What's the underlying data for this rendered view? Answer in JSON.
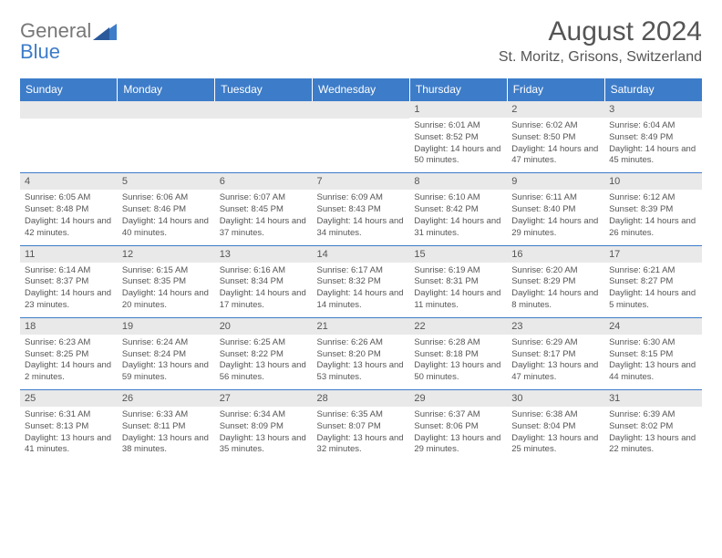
{
  "logo": {
    "word1": "General",
    "word2": "Blue"
  },
  "title": "August 2024",
  "location": "St. Moritz, Grisons, Switzerland",
  "colors": {
    "header_bg": "#3d7cc9",
    "header_text": "#ffffff",
    "daynum_bg": "#e9e9e9",
    "border": "#3d7cc9",
    "body_text": "#555555",
    "logo_gray": "#777777",
    "logo_blue": "#3d7cc9"
  },
  "weekdays": [
    "Sunday",
    "Monday",
    "Tuesday",
    "Wednesday",
    "Thursday",
    "Friday",
    "Saturday"
  ],
  "weeks": [
    [
      null,
      null,
      null,
      null,
      {
        "day": "1",
        "sunrise": "Sunrise: 6:01 AM",
        "sunset": "Sunset: 8:52 PM",
        "daylight": "Daylight: 14 hours and 50 minutes."
      },
      {
        "day": "2",
        "sunrise": "Sunrise: 6:02 AM",
        "sunset": "Sunset: 8:50 PM",
        "daylight": "Daylight: 14 hours and 47 minutes."
      },
      {
        "day": "3",
        "sunrise": "Sunrise: 6:04 AM",
        "sunset": "Sunset: 8:49 PM",
        "daylight": "Daylight: 14 hours and 45 minutes."
      }
    ],
    [
      {
        "day": "4",
        "sunrise": "Sunrise: 6:05 AM",
        "sunset": "Sunset: 8:48 PM",
        "daylight": "Daylight: 14 hours and 42 minutes."
      },
      {
        "day": "5",
        "sunrise": "Sunrise: 6:06 AM",
        "sunset": "Sunset: 8:46 PM",
        "daylight": "Daylight: 14 hours and 40 minutes."
      },
      {
        "day": "6",
        "sunrise": "Sunrise: 6:07 AM",
        "sunset": "Sunset: 8:45 PM",
        "daylight": "Daylight: 14 hours and 37 minutes."
      },
      {
        "day": "7",
        "sunrise": "Sunrise: 6:09 AM",
        "sunset": "Sunset: 8:43 PM",
        "daylight": "Daylight: 14 hours and 34 minutes."
      },
      {
        "day": "8",
        "sunrise": "Sunrise: 6:10 AM",
        "sunset": "Sunset: 8:42 PM",
        "daylight": "Daylight: 14 hours and 31 minutes."
      },
      {
        "day": "9",
        "sunrise": "Sunrise: 6:11 AM",
        "sunset": "Sunset: 8:40 PM",
        "daylight": "Daylight: 14 hours and 29 minutes."
      },
      {
        "day": "10",
        "sunrise": "Sunrise: 6:12 AM",
        "sunset": "Sunset: 8:39 PM",
        "daylight": "Daylight: 14 hours and 26 minutes."
      }
    ],
    [
      {
        "day": "11",
        "sunrise": "Sunrise: 6:14 AM",
        "sunset": "Sunset: 8:37 PM",
        "daylight": "Daylight: 14 hours and 23 minutes."
      },
      {
        "day": "12",
        "sunrise": "Sunrise: 6:15 AM",
        "sunset": "Sunset: 8:35 PM",
        "daylight": "Daylight: 14 hours and 20 minutes."
      },
      {
        "day": "13",
        "sunrise": "Sunrise: 6:16 AM",
        "sunset": "Sunset: 8:34 PM",
        "daylight": "Daylight: 14 hours and 17 minutes."
      },
      {
        "day": "14",
        "sunrise": "Sunrise: 6:17 AM",
        "sunset": "Sunset: 8:32 PM",
        "daylight": "Daylight: 14 hours and 14 minutes."
      },
      {
        "day": "15",
        "sunrise": "Sunrise: 6:19 AM",
        "sunset": "Sunset: 8:31 PM",
        "daylight": "Daylight: 14 hours and 11 minutes."
      },
      {
        "day": "16",
        "sunrise": "Sunrise: 6:20 AM",
        "sunset": "Sunset: 8:29 PM",
        "daylight": "Daylight: 14 hours and 8 minutes."
      },
      {
        "day": "17",
        "sunrise": "Sunrise: 6:21 AM",
        "sunset": "Sunset: 8:27 PM",
        "daylight": "Daylight: 14 hours and 5 minutes."
      }
    ],
    [
      {
        "day": "18",
        "sunrise": "Sunrise: 6:23 AM",
        "sunset": "Sunset: 8:25 PM",
        "daylight": "Daylight: 14 hours and 2 minutes."
      },
      {
        "day": "19",
        "sunrise": "Sunrise: 6:24 AM",
        "sunset": "Sunset: 8:24 PM",
        "daylight": "Daylight: 13 hours and 59 minutes."
      },
      {
        "day": "20",
        "sunrise": "Sunrise: 6:25 AM",
        "sunset": "Sunset: 8:22 PM",
        "daylight": "Daylight: 13 hours and 56 minutes."
      },
      {
        "day": "21",
        "sunrise": "Sunrise: 6:26 AM",
        "sunset": "Sunset: 8:20 PM",
        "daylight": "Daylight: 13 hours and 53 minutes."
      },
      {
        "day": "22",
        "sunrise": "Sunrise: 6:28 AM",
        "sunset": "Sunset: 8:18 PM",
        "daylight": "Daylight: 13 hours and 50 minutes."
      },
      {
        "day": "23",
        "sunrise": "Sunrise: 6:29 AM",
        "sunset": "Sunset: 8:17 PM",
        "daylight": "Daylight: 13 hours and 47 minutes."
      },
      {
        "day": "24",
        "sunrise": "Sunrise: 6:30 AM",
        "sunset": "Sunset: 8:15 PM",
        "daylight": "Daylight: 13 hours and 44 minutes."
      }
    ],
    [
      {
        "day": "25",
        "sunrise": "Sunrise: 6:31 AM",
        "sunset": "Sunset: 8:13 PM",
        "daylight": "Daylight: 13 hours and 41 minutes."
      },
      {
        "day": "26",
        "sunrise": "Sunrise: 6:33 AM",
        "sunset": "Sunset: 8:11 PM",
        "daylight": "Daylight: 13 hours and 38 minutes."
      },
      {
        "day": "27",
        "sunrise": "Sunrise: 6:34 AM",
        "sunset": "Sunset: 8:09 PM",
        "daylight": "Daylight: 13 hours and 35 minutes."
      },
      {
        "day": "28",
        "sunrise": "Sunrise: 6:35 AM",
        "sunset": "Sunset: 8:07 PM",
        "daylight": "Daylight: 13 hours and 32 minutes."
      },
      {
        "day": "29",
        "sunrise": "Sunrise: 6:37 AM",
        "sunset": "Sunset: 8:06 PM",
        "daylight": "Daylight: 13 hours and 29 minutes."
      },
      {
        "day": "30",
        "sunrise": "Sunrise: 6:38 AM",
        "sunset": "Sunset: 8:04 PM",
        "daylight": "Daylight: 13 hours and 25 minutes."
      },
      {
        "day": "31",
        "sunrise": "Sunrise: 6:39 AM",
        "sunset": "Sunset: 8:02 PM",
        "daylight": "Daylight: 13 hours and 22 minutes."
      }
    ]
  ]
}
